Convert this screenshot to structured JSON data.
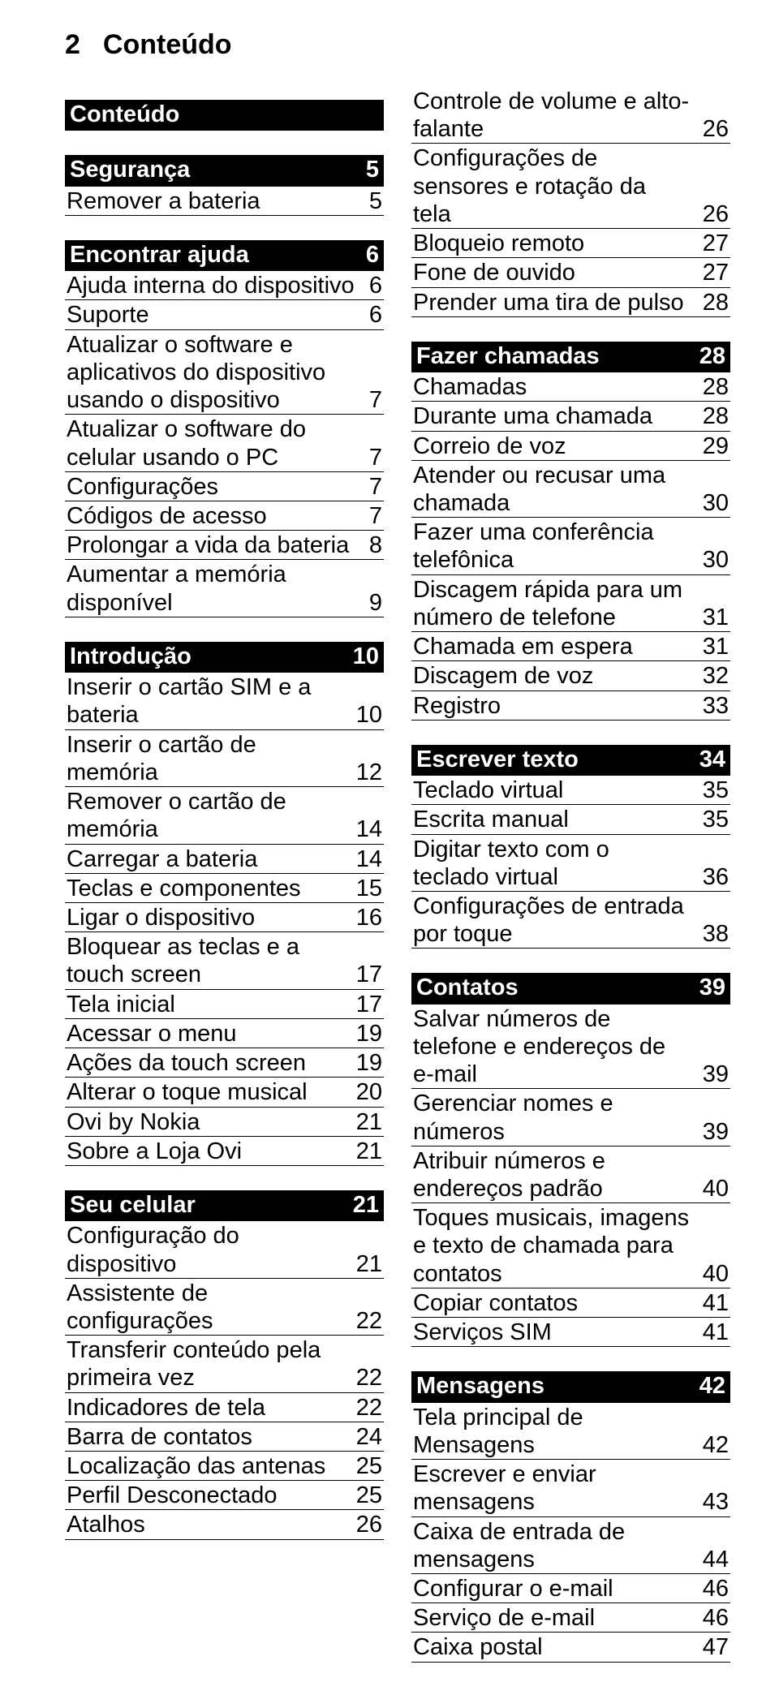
{
  "page_number": "2",
  "page_title": "Conteúdo",
  "left_column": [
    {
      "type": "head",
      "label": "Conteúdo"
    },
    {
      "type": "spacer"
    },
    {
      "type": "head",
      "label": "Segurança",
      "num": "5"
    },
    {
      "type": "row",
      "label": "Remover a bateria",
      "num": "5"
    },
    {
      "type": "spacer"
    },
    {
      "type": "head",
      "label": "Encontrar ajuda",
      "num": "6"
    },
    {
      "type": "row",
      "label": "Ajuda interna do dispositivo",
      "num": "6"
    },
    {
      "type": "row",
      "label": "Suporte",
      "num": "6"
    },
    {
      "type": "row",
      "label": "Atualizar o software e aplicativos do dispositivo usando o dispositivo",
      "num": "7"
    },
    {
      "type": "row",
      "label": "Atualizar o software do celular usando o PC",
      "num": "7"
    },
    {
      "type": "row",
      "label": "Configurações",
      "num": "7"
    },
    {
      "type": "row",
      "label": "Códigos de acesso",
      "num": "7"
    },
    {
      "type": "row",
      "label": "Prolongar a vida da bateria",
      "num": "8"
    },
    {
      "type": "row",
      "label": "Aumentar a memória disponível",
      "num": "9"
    },
    {
      "type": "spacer"
    },
    {
      "type": "head",
      "label": "Introdução",
      "num": "10"
    },
    {
      "type": "row",
      "label": "Inserir o cartão SIM e a bateria",
      "num": "10"
    },
    {
      "type": "row",
      "label": "Inserir o cartão de memória",
      "num": "12"
    },
    {
      "type": "row",
      "label": "Remover o cartão de memória",
      "num": "14"
    },
    {
      "type": "row",
      "label": "Carregar a bateria",
      "num": "14"
    },
    {
      "type": "row",
      "label": "Teclas e componentes",
      "num": "15"
    },
    {
      "type": "row",
      "label": "Ligar o dispositivo",
      "num": "16"
    },
    {
      "type": "row",
      "label": "Bloquear as teclas e a touch screen",
      "num": "17"
    },
    {
      "type": "row",
      "label": "Tela inicial",
      "num": "17"
    },
    {
      "type": "row",
      "label": "Acessar o menu",
      "num": "19"
    },
    {
      "type": "row",
      "label": "Ações da touch screen",
      "num": "19"
    },
    {
      "type": "row",
      "label": "Alterar o toque musical",
      "num": "20"
    },
    {
      "type": "row",
      "label": "Ovi by Nokia",
      "num": "21"
    },
    {
      "type": "row",
      "label": "Sobre a Loja Ovi",
      "num": "21"
    },
    {
      "type": "spacer"
    },
    {
      "type": "head",
      "label": "Seu celular",
      "num": "21"
    },
    {
      "type": "row",
      "label": "Configuração do dispositivo",
      "num": "21"
    },
    {
      "type": "row",
      "label": "Assistente de configurações",
      "num": "22"
    },
    {
      "type": "row",
      "label": "Transferir conteúdo pela primeira vez",
      "num": "22"
    },
    {
      "type": "row",
      "label": "Indicadores de tela",
      "num": "22"
    },
    {
      "type": "row",
      "label": "Barra de contatos",
      "num": "24"
    },
    {
      "type": "row",
      "label": "Localização das antenas",
      "num": "25"
    },
    {
      "type": "row",
      "label": "Perfil Desconectado",
      "num": "25"
    },
    {
      "type": "row",
      "label": "Atalhos",
      "num": "26"
    }
  ],
  "right_column": [
    {
      "type": "row",
      "label": "Controle de volume e alto-falante",
      "num": "26"
    },
    {
      "type": "row",
      "label": "Configurações de sensores e rotação da tela",
      "num": "26"
    },
    {
      "type": "row",
      "label": "Bloqueio remoto",
      "num": "27"
    },
    {
      "type": "row",
      "label": "Fone de ouvido",
      "num": "27"
    },
    {
      "type": "row",
      "label": "Prender uma tira de pulso",
      "num": "28"
    },
    {
      "type": "spacer"
    },
    {
      "type": "head",
      "label": "Fazer chamadas",
      "num": "28"
    },
    {
      "type": "row",
      "label": "Chamadas",
      "num": "28"
    },
    {
      "type": "row",
      "label": "Durante uma chamada",
      "num": "28"
    },
    {
      "type": "row",
      "label": "Correio de voz",
      "num": "29"
    },
    {
      "type": "row",
      "label": "Atender ou recusar uma chamada",
      "num": "30"
    },
    {
      "type": "row",
      "label": "Fazer uma conferência telefônica",
      "num": "30"
    },
    {
      "type": "row",
      "label": "Discagem rápida para um número de telefone",
      "num": "31"
    },
    {
      "type": "row",
      "label": "Chamada em espera",
      "num": "31"
    },
    {
      "type": "row",
      "label": "Discagem de voz",
      "num": "32"
    },
    {
      "type": "row",
      "label": "Registro",
      "num": "33"
    },
    {
      "type": "spacer"
    },
    {
      "type": "head",
      "label": "Escrever texto",
      "num": "34"
    },
    {
      "type": "row",
      "label": "Teclado virtual",
      "num": "35"
    },
    {
      "type": "row",
      "label": "Escrita manual",
      "num": "35"
    },
    {
      "type": "row",
      "label": "Digitar texto com o teclado virtual",
      "num": "36"
    },
    {
      "type": "row",
      "label": "Configurações de entrada por toque",
      "num": "38"
    },
    {
      "type": "spacer"
    },
    {
      "type": "head",
      "label": "Contatos",
      "num": "39"
    },
    {
      "type": "row",
      "label": "Salvar números de telefone e endereços de e-mail",
      "num": "39"
    },
    {
      "type": "row",
      "label": "Gerenciar nomes e números",
      "num": "39"
    },
    {
      "type": "row",
      "label": "Atribuir números e endereços padrão",
      "num": "40"
    },
    {
      "type": "row",
      "label": "Toques musicais, imagens e texto de chamada para contatos",
      "num": "40"
    },
    {
      "type": "row",
      "label": "Copiar contatos",
      "num": "41"
    },
    {
      "type": "row",
      "label": "Serviços SIM",
      "num": "41"
    },
    {
      "type": "spacer"
    },
    {
      "type": "head",
      "label": "Mensagens",
      "num": "42"
    },
    {
      "type": "row",
      "label": "Tela principal de Mensagens",
      "num": "42"
    },
    {
      "type": "row",
      "label": "Escrever e enviar mensagens",
      "num": "43"
    },
    {
      "type": "row",
      "label": "Caixa de entrada de mensagens",
      "num": "44"
    },
    {
      "type": "row",
      "label": "Configurar o e-mail",
      "num": "46"
    },
    {
      "type": "row",
      "label": "Serviço de e-mail",
      "num": "46"
    },
    {
      "type": "row",
      "label": "Caixa postal",
      "num": "47"
    }
  ]
}
